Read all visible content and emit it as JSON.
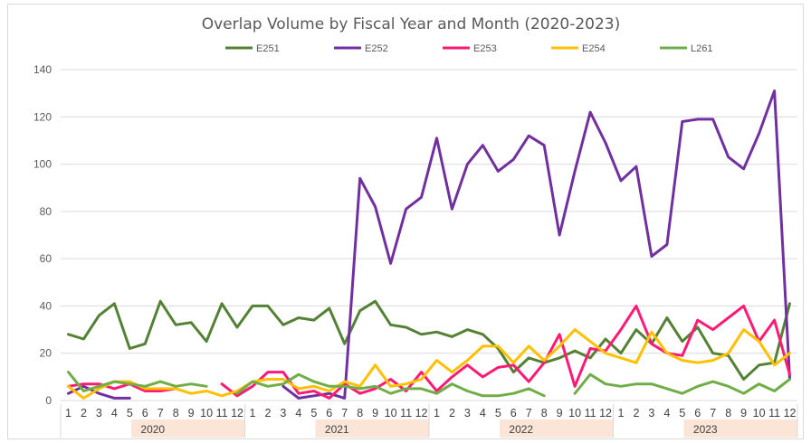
{
  "chart_data": {
    "type": "line",
    "title": "Overlap Volume by Fiscal Year and Month (2020-2023)",
    "xlabel": "",
    "ylabel": "",
    "ylim": [
      0,
      140
    ],
    "yticks": [
      0,
      20,
      40,
      60,
      80,
      100,
      120,
      140
    ],
    "grid": true,
    "legend_position": "top",
    "years": [
      "2020",
      "2021",
      "2022",
      "2023"
    ],
    "month_labels": [
      "1",
      "2",
      "3",
      "4",
      "5",
      "6",
      "7",
      "8",
      "9",
      "10",
      "11",
      "12"
    ],
    "series": [
      {
        "name": "E251",
        "color": "#548235",
        "values": [
          28,
          26,
          36,
          41,
          22,
          24,
          42,
          32,
          33,
          25,
          41,
          31,
          40,
          40,
          32,
          35,
          34,
          39,
          24,
          38,
          42,
          32,
          31,
          28,
          29,
          27,
          30,
          28,
          22,
          12,
          18,
          16,
          18,
          21,
          18,
          26,
          20,
          30,
          24,
          35,
          25,
          31,
          20,
          19,
          9,
          15,
          16,
          41
        ]
      },
      {
        "name": "E252",
        "color": "#7030a0",
        "values": [
          3,
          6,
          3,
          1,
          1,
          null,
          null,
          null,
          null,
          null,
          null,
          null,
          null,
          null,
          6,
          1,
          2,
          3,
          1,
          94,
          82,
          58,
          81,
          86,
          111,
          81,
          100,
          108,
          97,
          102,
          112,
          108,
          70,
          97,
          122,
          109,
          93,
          99,
          61,
          66,
          118,
          119,
          119,
          103,
          98,
          113,
          131,
          9
        ]
      },
      {
        "name": "E253",
        "color": "#ff1a75",
        "values": [
          6,
          7,
          7,
          5,
          7,
          4,
          4,
          5,
          null,
          null,
          7,
          2,
          6,
          12,
          12,
          3,
          4,
          1,
          7,
          3,
          5,
          9,
          4,
          12,
          4,
          10,
          15,
          10,
          14,
          15,
          8,
          16,
          28,
          6,
          22,
          21,
          30,
          40,
          24,
          20,
          19,
          34,
          30,
          35,
          40,
          25,
          34,
          11
        ]
      },
      {
        "name": "E254",
        "color": "#ffc000",
        "values": [
          6,
          1,
          5,
          8,
          8,
          5,
          5,
          5,
          3,
          4,
          2,
          4,
          8,
          9,
          9,
          5,
          6,
          4,
          8,
          6,
          15,
          6,
          7,
          9,
          17,
          12,
          17,
          23,
          23,
          16,
          23,
          17,
          23,
          30,
          25,
          20,
          18,
          16,
          29,
          20,
          17,
          16,
          17,
          20,
          30,
          25,
          15,
          20
        ]
      },
      {
        "name": "L261",
        "color": "#70ad47",
        "values": [
          12,
          4,
          6,
          8,
          7,
          6,
          8,
          6,
          7,
          6,
          null,
          3,
          8,
          6,
          7,
          11,
          8,
          6,
          6,
          5,
          6,
          3,
          5,
          5,
          3,
          7,
          4,
          2,
          2,
          3,
          5,
          2,
          null,
          3,
          11,
          7,
          6,
          7,
          7,
          5,
          3,
          6,
          8,
          6,
          3,
          7,
          4,
          9
        ]
      }
    ]
  }
}
